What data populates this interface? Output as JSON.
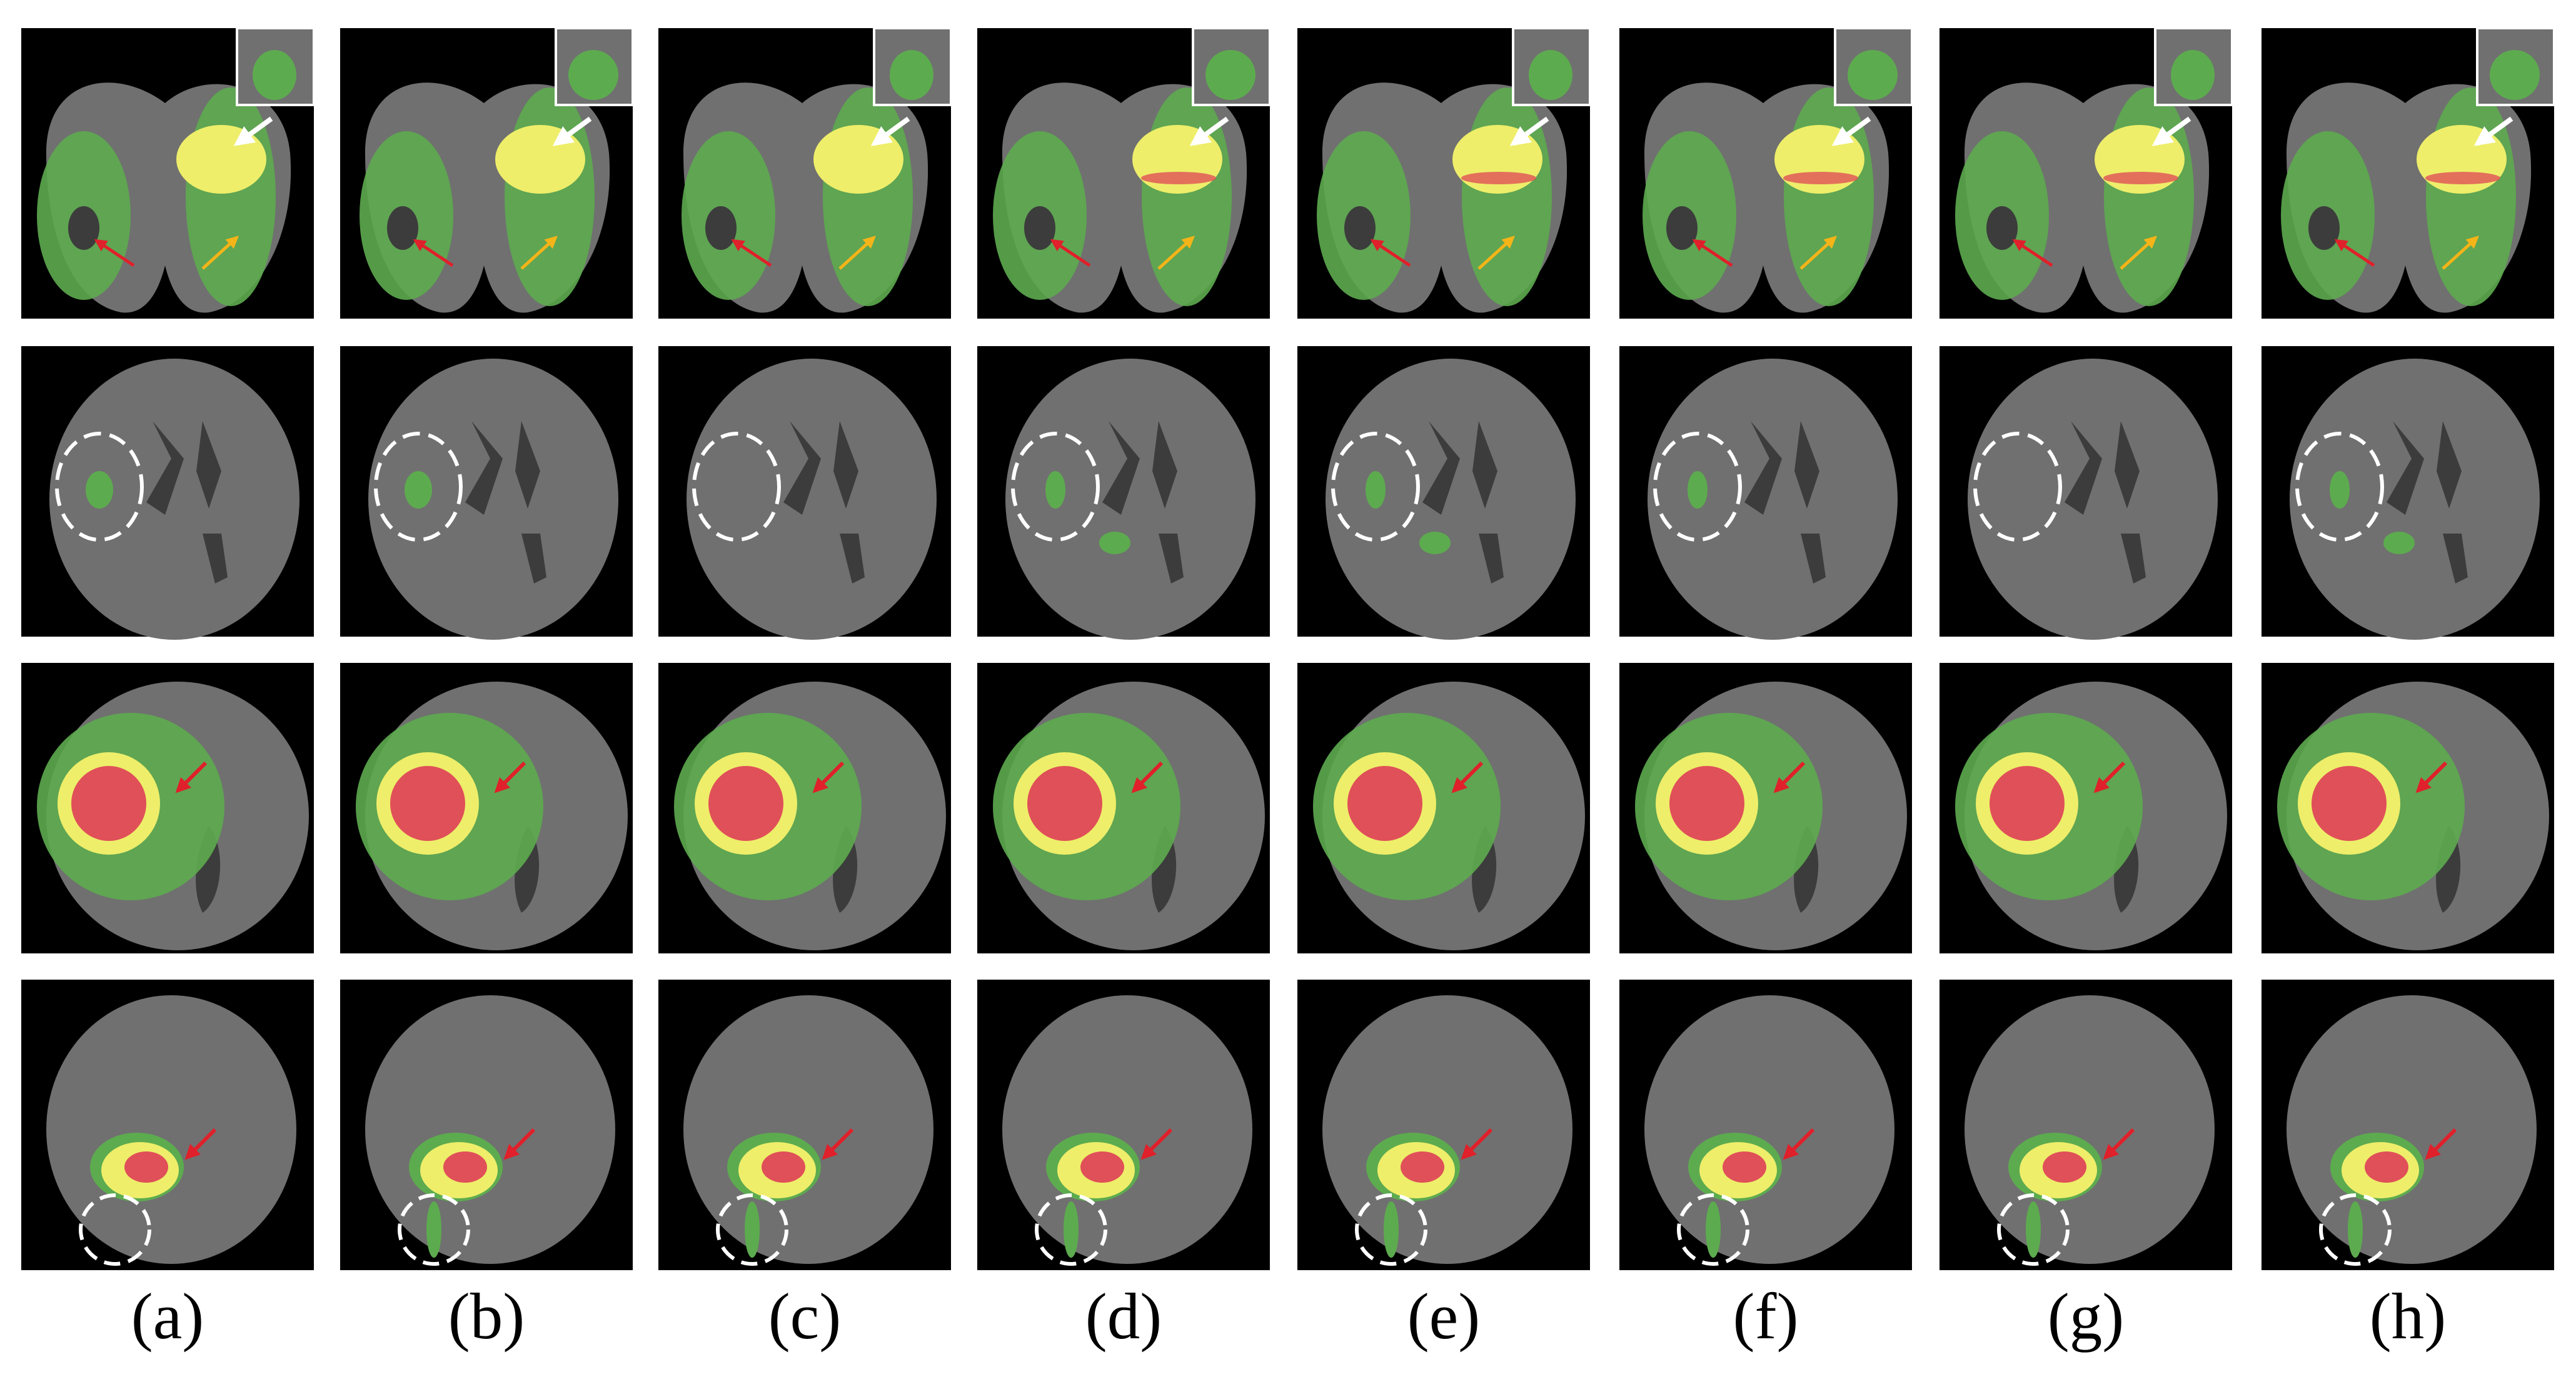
{
  "panel_labels": [
    "(a)",
    "(b)",
    "(c)",
    "(d)",
    "(e)",
    "(f)",
    "(g)",
    "(h)"
  ]
}
